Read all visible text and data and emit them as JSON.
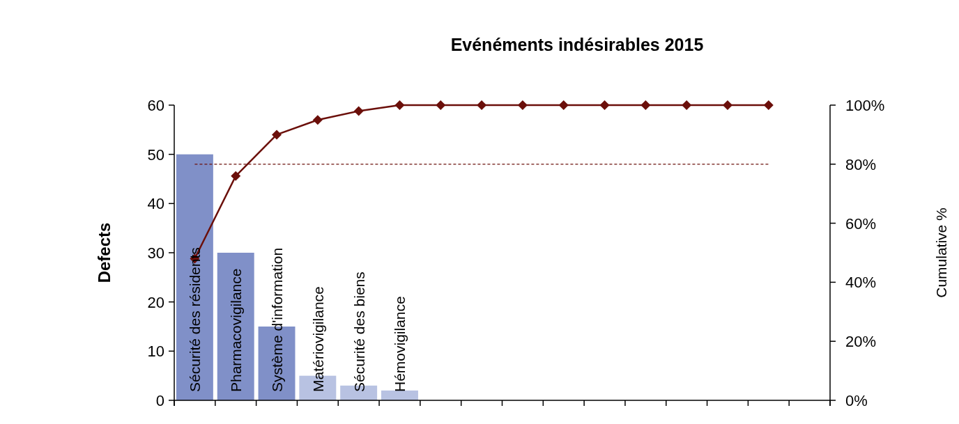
{
  "chart_data": {
    "type": "bar",
    "title": "Evénéments indésirables 2015",
    "ylabel": "Defects",
    "y2label": "Cumulative %",
    "categories": [
      "Sécurité des résidents",
      "Pharmacovigilance",
      "Système d'information",
      "Matériovigilance",
      "Sécurité des biens",
      "Hémovigilance",
      null,
      null,
      null,
      null,
      null,
      null,
      null,
      null,
      null,
      null
    ],
    "series": [
      {
        "colors": [
          "#8090c8",
          "#8090c8",
          "#8090c8",
          "#b8c2e2",
          "#b8c2e2",
          "#b8c2e2",
          "#b8c2e2",
          "#b8c2e2",
          "#b8c2e2",
          "#b8c2e2",
          "#b8c2e2",
          "#b8c2e2",
          "#b8c2e2",
          "#b8c2e2",
          "#b8c2e2",
          null
        ],
        "values": [
          50,
          30,
          15,
          5,
          3,
          2,
          0,
          0,
          0,
          0,
          0,
          0,
          0,
          0,
          0,
          null
        ]
      },
      {
        "type": "line",
        "axis": "y2",
        "color": "#6b0f0a",
        "marker": "diamond",
        "values": [
          48,
          76,
          90,
          95,
          98,
          100,
          100,
          100,
          100,
          100,
          100,
          100,
          100,
          100,
          100,
          null
        ]
      }
    ],
    "ylim": [
      0,
      60
    ],
    "yticks": [
      0,
      10,
      20,
      30,
      40,
      50,
      60
    ],
    "y2lim": [
      0,
      100
    ],
    "y2ticks": [
      {
        "value": 0,
        "label": "0%"
      },
      {
        "value": 20,
        "label": "20%"
      },
      {
        "value": 40,
        "label": "40%"
      },
      {
        "value": 60,
        "label": "60%"
      },
      {
        "value": 80,
        "label": "80%"
      },
      {
        "value": 100,
        "label": "100%"
      }
    ],
    "ref_lines": [
      {
        "axis": "y2",
        "value": 80,
        "color": "#6b0f0a",
        "line_style": "dashed"
      }
    ],
    "grid": false
  }
}
